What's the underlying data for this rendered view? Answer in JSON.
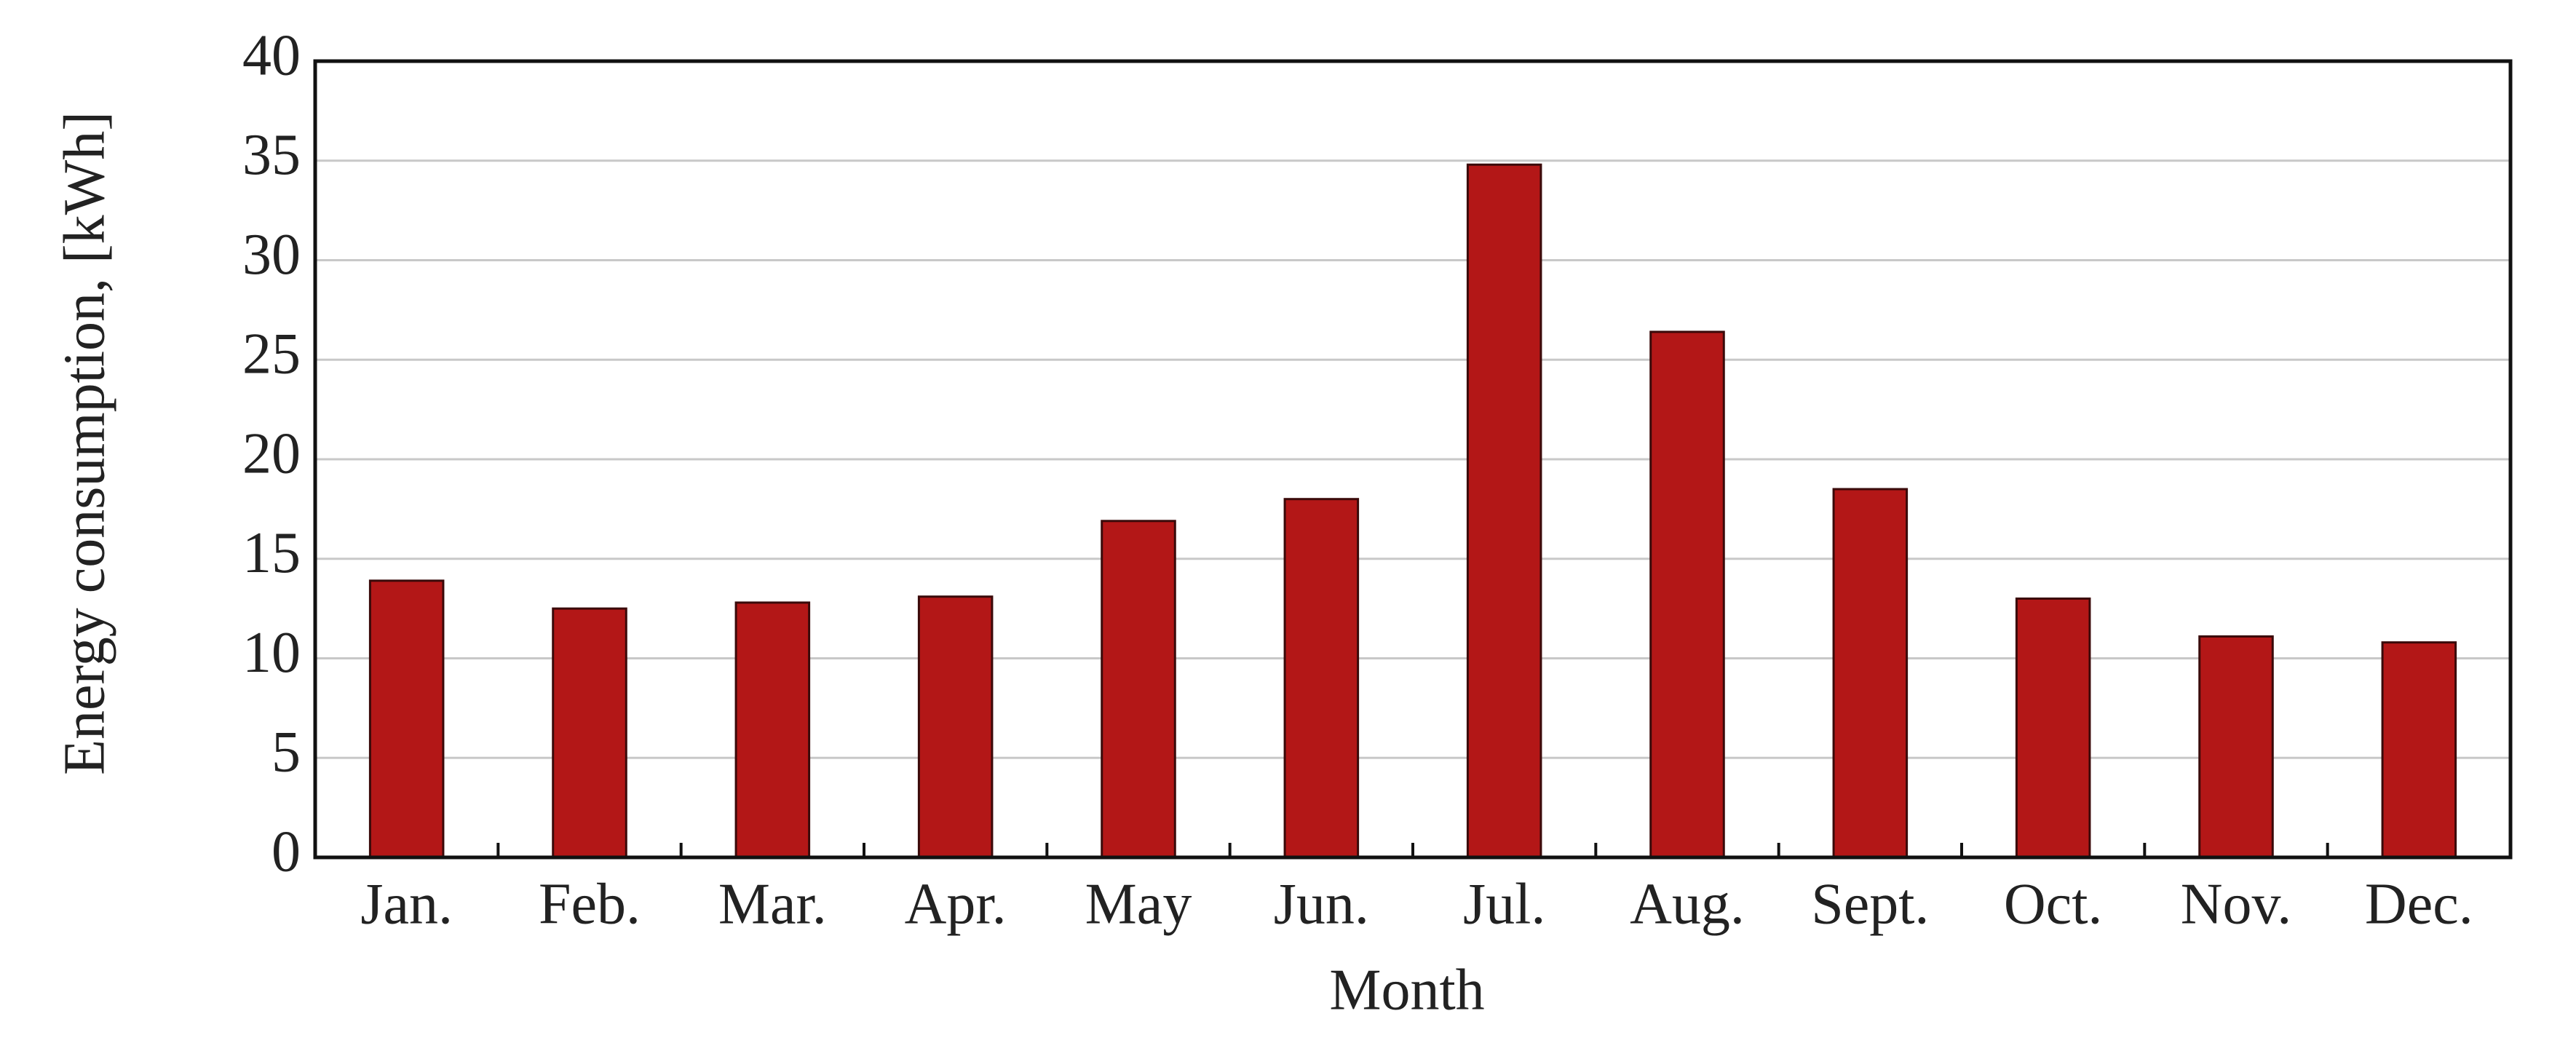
{
  "chart_data": {
    "type": "bar",
    "categories": [
      "Jan.",
      "Feb.",
      "Mar.",
      "Apr.",
      "May",
      "Jun.",
      "Jul.",
      "Aug.",
      "Sept.",
      "Oct.",
      "Nov.",
      "Dec."
    ],
    "values": [
      13.9,
      12.5,
      12.8,
      13.1,
      16.9,
      18.0,
      34.8,
      26.4,
      18.5,
      13.0,
      11.1,
      10.8
    ],
    "color": "#b31717",
    "x_label": "Month",
    "y_label": "Energy consumption, [kWh]",
    "ylim": [
      0,
      40
    ],
    "yticks": [
      0,
      5,
      10,
      15,
      20,
      25,
      30,
      35,
      40
    ],
    "grid": true
  }
}
